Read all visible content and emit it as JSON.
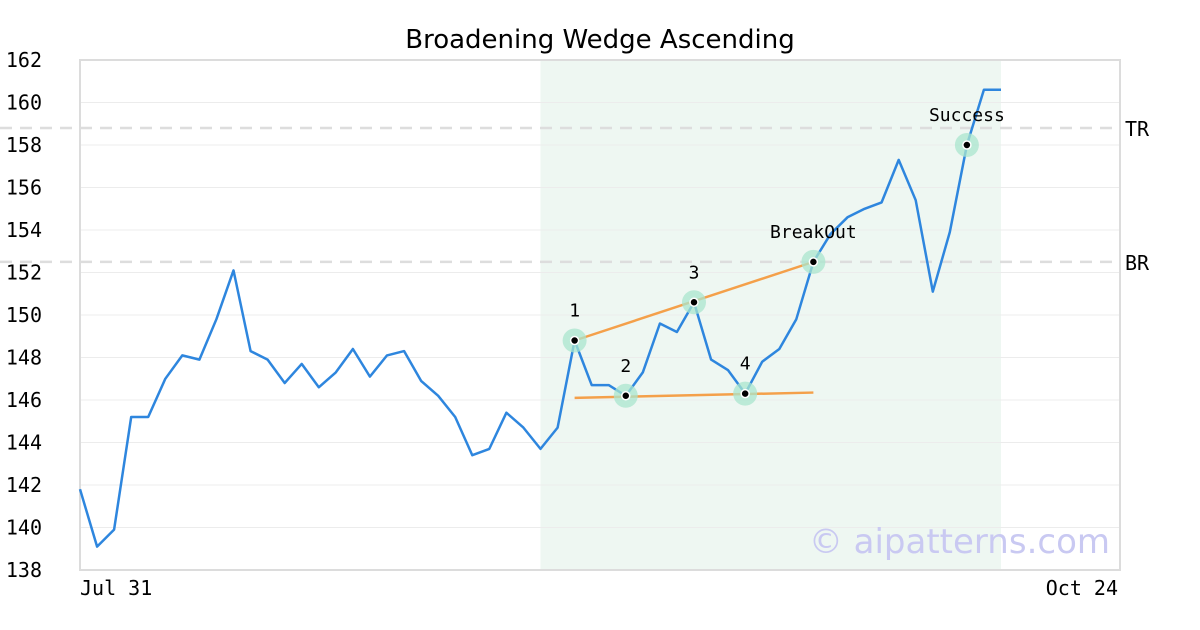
{
  "chart_data": {
    "type": "line",
    "title": "Broadening Wedge Ascending",
    "xlabel": "",
    "ylabel": "",
    "ylim": [
      138,
      162
    ],
    "yticks": [
      138,
      140,
      142,
      144,
      146,
      148,
      150,
      152,
      154,
      156,
      158,
      160,
      162
    ],
    "x_tick_labels": [
      "Jul 31",
      "Oct 24"
    ],
    "grid": true,
    "line_color": "#2e86de",
    "series": [
      {
        "name": "",
        "values": [
          141.8,
          139.1,
          139.9,
          145.2,
          145.2,
          147.0,
          148.1,
          147.9,
          149.8,
          152.1,
          148.3,
          147.9,
          146.8,
          147.7,
          146.6,
          147.3,
          148.4,
          147.1,
          148.1,
          148.3,
          146.9,
          146.2,
          145.2,
          143.4,
          143.7,
          145.4,
          144.7,
          143.7,
          144.7,
          148.8,
          146.7,
          146.7,
          146.2,
          147.3,
          149.6,
          149.2,
          150.6,
          147.9,
          147.4,
          146.3,
          147.8,
          148.4,
          149.8,
          152.5,
          153.8,
          154.6,
          155.0,
          155.3,
          157.3,
          155.4,
          151.1,
          153.9,
          158.0,
          160.6,
          160.6
        ]
      }
    ],
    "highlight_region": {
      "start_index": 27,
      "end_index": 54,
      "color": "#eef7f2"
    },
    "horizontal_lines": [
      {
        "label": "TR",
        "value": 158.8
      },
      {
        "label": "BR",
        "value": 152.5
      }
    ],
    "trend_lines": [
      {
        "from": [
          29,
          148.8
        ],
        "to": [
          43,
          152.5
        ],
        "color": "#f4a04a"
      },
      {
        "from": [
          29,
          146.1
        ],
        "to": [
          43,
          146.35
        ],
        "color": "#f4a04a"
      }
    ],
    "annotations": [
      {
        "label": "1",
        "index": 29,
        "value": 148.8
      },
      {
        "label": "2",
        "index": 32,
        "value": 146.2
      },
      {
        "label": "3",
        "index": 36,
        "value": 150.6
      },
      {
        "label": "4",
        "index": 39,
        "value": 146.3
      },
      {
        "label": "BreakOut",
        "index": 43,
        "value": 152.5
      },
      {
        "label": "Success",
        "index": 52,
        "value": 158.0
      }
    ],
    "watermark": "© aipatterns.com"
  }
}
